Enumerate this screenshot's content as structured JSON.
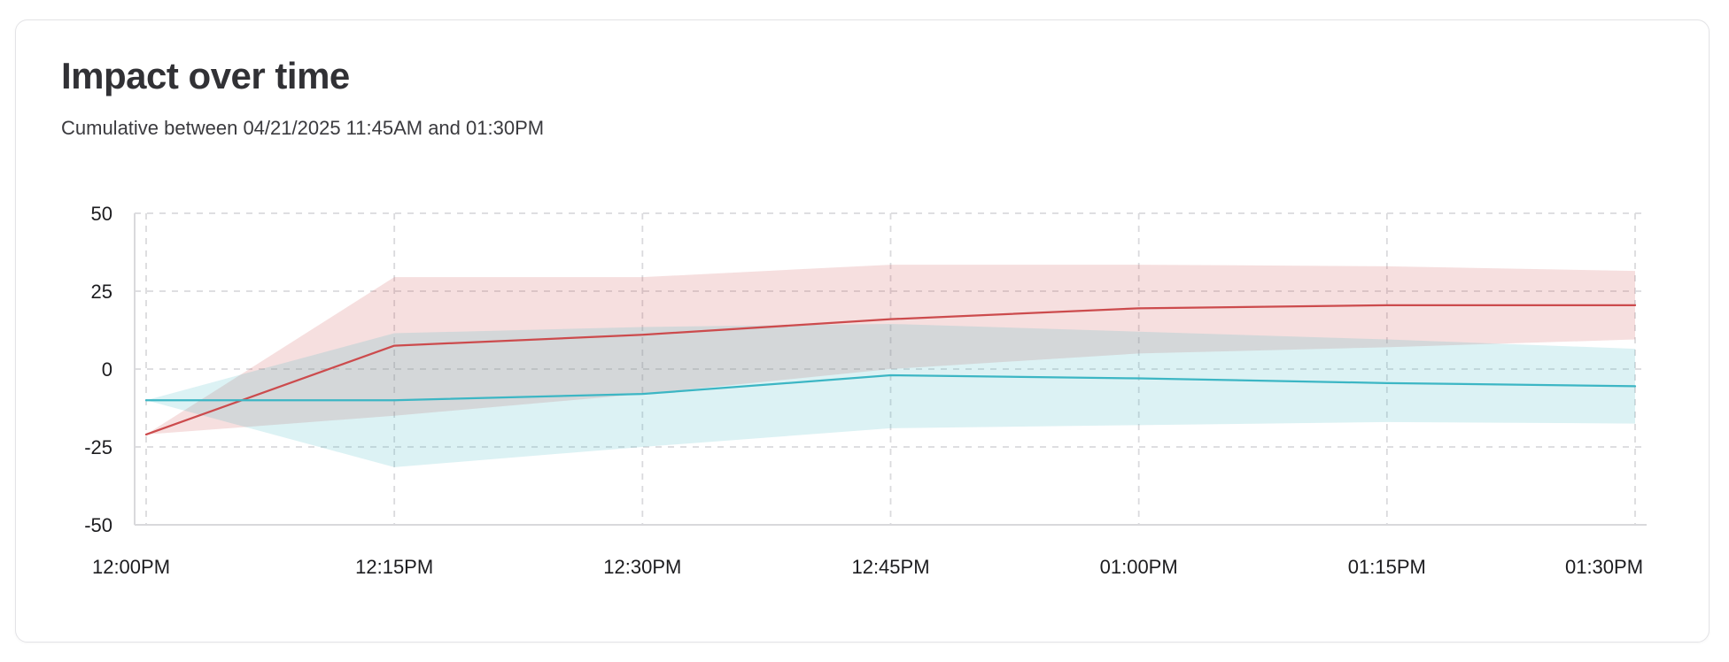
{
  "card": {
    "title": "Impact over time",
    "subtitle": "Cumulative between 04/21/2025 11:45AM and 01:30PM"
  },
  "chart_data": {
    "type": "line",
    "title": "Impact over time",
    "subtitle": "Cumulative between 04/21/2025 11:45AM and 01:30PM",
    "x": [
      "12:00PM",
      "12:15PM",
      "12:30PM",
      "12:45PM",
      "01:00PM",
      "01:15PM",
      "01:30PM"
    ],
    "y_ticks": [
      50,
      25,
      0,
      -25,
      -50
    ],
    "ylim": [
      -50,
      50
    ],
    "grid": {
      "style": "dashed",
      "color": "#dadadd",
      "axis_color": "#d9d9dc"
    },
    "axis_label_color": "#1c1c1f",
    "legend": "none",
    "series": [
      {
        "name": "red-series",
        "line_color": "#cc4b4d",
        "band_opacity": 0.18,
        "values": [
          -21,
          7.5,
          11,
          16,
          19.5,
          20.5,
          20.5
        ],
        "band_upper": [
          -21,
          29.5,
          29.5,
          33.5,
          33.5,
          33,
          31.5
        ],
        "band_lower": [
          -21,
          -15,
          -8,
          0,
          5,
          7,
          9.5
        ]
      },
      {
        "name": "cyan-series",
        "line_color": "#3cb6c4",
        "band_opacity": 0.18,
        "values": [
          -10,
          -10,
          -8,
          -2,
          -3,
          -4.5,
          -5.5
        ],
        "band_upper": [
          -10,
          11.5,
          13.5,
          14.5,
          12,
          9.5,
          6.5
        ],
        "band_lower": [
          -10,
          -31.5,
          -25,
          -19,
          -18,
          -17,
          -17.5
        ]
      }
    ]
  }
}
